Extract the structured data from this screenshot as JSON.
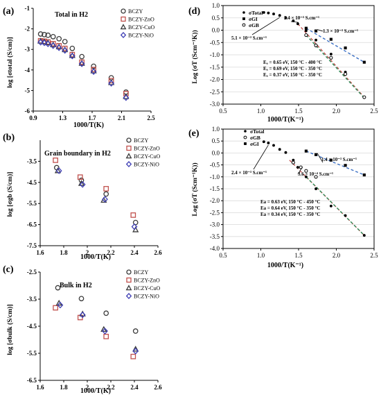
{
  "chart_data": [
    {
      "id": "a",
      "type": "scatter",
      "panel_label": "(a)",
      "title": "Total in H2",
      "xlabel": "1000/T(K)",
      "ylabel": "log [σtotal (S/cm)]",
      "xlim": [
        0.9,
        2.5
      ],
      "ylim": [
        -6,
        -1
      ],
      "xticks": [
        "0.9",
        "1.3",
        "1.7",
        "2.1",
        "2.5"
      ],
      "xtick_values": [
        0.9,
        1.3,
        1.7,
        2.1,
        2.5
      ],
      "yticks": [
        "-1",
        "-2",
        "-3",
        "-4",
        "-5",
        "-6"
      ],
      "ytick_values": [
        -1,
        -2,
        -3,
        -4,
        -5,
        -6
      ],
      "legend_position": "top-right",
      "series": [
        {
          "name": "BCZY",
          "marker": "circle",
          "color": "#3a3a3a",
          "x": [
            1.0,
            1.05,
            1.1,
            1.17,
            1.25,
            1.33,
            1.43,
            1.56,
            1.72,
            1.96,
            2.16
          ],
          "y": [
            -2.25,
            -2.28,
            -2.31,
            -2.38,
            -2.48,
            -2.62,
            -2.95,
            -3.35,
            -3.82,
            -4.38,
            -5.08
          ]
        },
        {
          "name": "BCZY-ZnO",
          "marker": "square",
          "color": "#c0504d",
          "x": [
            1.0,
            1.05,
            1.1,
            1.17,
            1.25,
            1.33,
            1.43,
            1.56,
            1.72,
            1.96,
            2.16
          ],
          "y": [
            -2.58,
            -2.6,
            -2.64,
            -2.72,
            -2.82,
            -2.95,
            -3.25,
            -3.62,
            -3.98,
            -4.52,
            -5.15
          ]
        },
        {
          "name": "BCZY-CuO",
          "marker": "triangle",
          "color": "#3a3a3a",
          "x": [
            1.0,
            1.05,
            1.1,
            1.17,
            1.25,
            1.33,
            1.43,
            1.56,
            1.72,
            1.96,
            2.16
          ],
          "y": [
            -2.6,
            -2.63,
            -2.68,
            -2.78,
            -2.88,
            -3.02,
            -3.3,
            -3.68,
            -4.05,
            -4.62,
            -5.3
          ]
        },
        {
          "name": "BCZY-NiO",
          "marker": "diamond",
          "color": "#3f3fb5",
          "x": [
            1.0,
            1.05,
            1.1,
            1.17,
            1.25,
            1.33,
            1.43,
            1.56,
            1.72,
            1.96,
            2.16
          ],
          "y": [
            -2.65,
            -2.68,
            -2.73,
            -2.82,
            -2.92,
            -3.05,
            -3.32,
            -3.7,
            -4.08,
            -4.65,
            -5.35
          ]
        }
      ]
    },
    {
      "id": "b",
      "type": "scatter",
      "panel_label": "(b)",
      "title": "Grain boundary in H2",
      "xlabel": "1000/T(K)",
      "ylabel": "log [σgb (S/cm)]",
      "xlim": [
        1.6,
        2.6
      ],
      "ylim": [
        -7.5,
        -2.5
      ],
      "xticks": [
        "1.6",
        "1.8",
        "2",
        "2.2",
        "2.4",
        "2.6"
      ],
      "xtick_values": [
        1.6,
        1.8,
        2.0,
        2.2,
        2.4,
        2.6
      ],
      "yticks": [
        "-3.5",
        "-4.5",
        "-5.5",
        "-6.5",
        "-7.5"
      ],
      "ytick_values": [
        -3.5,
        -4.5,
        -5.5,
        -6.5,
        -7.5
      ],
      "legend_position": "top-right",
      "series": [
        {
          "name": "BCZY",
          "marker": "circle",
          "color": "#3a3a3a",
          "x": [
            1.74,
            1.95,
            2.16,
            2.41
          ],
          "y": [
            -3.8,
            -4.4,
            -5.05,
            -6.4
          ]
        },
        {
          "name": "BCZY-ZnO",
          "marker": "square",
          "color": "#c0504d",
          "x": [
            1.73,
            1.94,
            2.16,
            2.39
          ],
          "y": [
            -3.45,
            -4.25,
            -4.8,
            -6.05
          ]
        },
        {
          "name": "BCZY-CuO",
          "marker": "triangle",
          "color": "#3a3a3a",
          "x": [
            1.75,
            1.95,
            2.14,
            2.41
          ],
          "y": [
            -3.95,
            -4.55,
            -5.35,
            -6.75
          ]
        },
        {
          "name": "BCZY-NiO",
          "marker": "diamond",
          "color": "#3f3fb5",
          "x": [
            1.76,
            1.96,
            2.15,
            2.4
          ],
          "y": [
            -3.95,
            -4.6,
            -5.3,
            -6.6
          ]
        }
      ]
    },
    {
      "id": "c",
      "type": "scatter",
      "panel_label": "(c)",
      "title": "Bulk in H2",
      "xlabel": "1000/T(K)",
      "ylabel": "log [σbulk (S/cm)]",
      "xlim": [
        1.6,
        2.6
      ],
      "ylim": [
        -6.5,
        -2.5
      ],
      "xticks": [
        "1.6",
        "1.8",
        "2",
        "2.2",
        "2.4",
        "2.6"
      ],
      "xtick_values": [
        1.6,
        1.8,
        2.0,
        2.2,
        2.4,
        2.6
      ],
      "yticks": [
        "-2.5",
        "-3.5",
        "-4.5",
        "-5.5",
        "-6.5"
      ],
      "ytick_values": [
        -2.5,
        -3.5,
        -4.5,
        -5.5,
        -6.5
      ],
      "legend_position": "top-right",
      "series": [
        {
          "name": "BCZY",
          "marker": "circle",
          "color": "#3a3a3a",
          "x": [
            1.75,
            1.95,
            2.16,
            2.41
          ],
          "y": [
            -3.08,
            -3.48,
            -4.02,
            -4.68
          ]
        },
        {
          "name": "BCZY-ZnO",
          "marker": "square",
          "color": "#c0504d",
          "x": [
            1.73,
            1.94,
            2.16,
            2.39
          ],
          "y": [
            -3.82,
            -4.18,
            -4.88,
            -5.62
          ]
        },
        {
          "name": "BCZY-CuO",
          "marker": "triangle",
          "color": "#3a3a3a",
          "x": [
            1.76,
            1.96,
            2.14,
            2.41
          ],
          "y": [
            -3.65,
            -4.05,
            -4.62,
            -5.35
          ]
        },
        {
          "name": "BCZY-NiO",
          "marker": "diamond",
          "color": "#3f3fb5",
          "x": [
            1.77,
            1.96,
            2.15,
            2.41
          ],
          "y": [
            -3.72,
            -4.08,
            -4.68,
            -5.42
          ]
        }
      ]
    },
    {
      "id": "d",
      "type": "scatter",
      "panel_label": "(d)",
      "title": "",
      "xlabel": "1000/T(K⁻¹)",
      "ylabel": "Log (σT (Scm⁻¹K))",
      "xlim": [
        0.5,
        2.5
      ],
      "ylim": [
        -3.0,
        1.0
      ],
      "xticks": [
        "0.5",
        "1.0",
        "1.5",
        "2.0",
        "2.5"
      ],
      "xtick_values": [
        0.5,
        1.0,
        1.5,
        2.0,
        2.5
      ],
      "yticks": [
        "1.0",
        "0.5",
        "0.0",
        "-0.5",
        "-1.0",
        "-1.5",
        "-2.0",
        "-2.5",
        "-3.0"
      ],
      "ytick_values": [
        1.0,
        0.5,
        0.0,
        -0.5,
        -1.0,
        -1.5,
        -2.0,
        -2.5,
        -3.0
      ],
      "grid": true,
      "legend_position": "top-left",
      "series": [
        {
          "name": "σTotal",
          "marker": "dot",
          "color": "#000000",
          "x": [
            1.04,
            1.1,
            1.17,
            1.25,
            1.33,
            1.43,
            1.49,
            1.6,
            1.73,
            1.93,
            2.12,
            2.37
          ],
          "y": [
            0.72,
            0.7,
            0.66,
            0.6,
            0.51,
            0.38,
            0.26,
            -0.02,
            -0.4,
            -0.97,
            -1.7,
            -2.72
          ]
        },
        {
          "name": "σGI",
          "marker": "square",
          "color": "#000000",
          "x": [
            1.6,
            1.73,
            1.93,
            2.12,
            2.37
          ],
          "y": [
            0.08,
            -0.03,
            -0.37,
            -0.72,
            -1.3
          ]
        },
        {
          "name": "σGB",
          "marker": "circle-open",
          "color": "#000000",
          "x": [
            1.6,
            1.73,
            1.93,
            2.12,
            2.37
          ],
          "y": [
            -0.2,
            -0.62,
            -1.12,
            -1.78,
            -2.72
          ]
        }
      ],
      "fits": [
        {
          "label": "Eₐ = 0.65 eV, 150 °C - 400 °C",
          "color": "#c0504d",
          "x": [
            1.49,
            2.37
          ],
          "y": [
            0.26,
            -2.72
          ]
        },
        {
          "label": "Eₐ = 0.69 eV, 150 °C - 350 °C",
          "color": "#2e8b57",
          "x": [
            1.6,
            2.37
          ],
          "y": [
            -0.2,
            -2.75
          ]
        },
        {
          "label": "Eₐ = 0.37 eV, 150 °C - 350 °C",
          "color": "#3a6fc4",
          "x": [
            1.6,
            2.37
          ],
          "y": [
            0.08,
            -1.3
          ]
        }
      ],
      "annotations": [
        "2.4 × 10⁻³ S.cm⁻¹",
        "1.3 × 10⁻³ S.cm⁻¹",
        "5.1 × 10⁻³ S.cm⁻¹"
      ]
    },
    {
      "id": "e",
      "type": "scatter",
      "panel_label": "(e)",
      "title": "",
      "xlabel": "1000/T(K⁻¹)",
      "ylabel": "Log (σT (Scm⁻¹K))",
      "xlim": [
        0.5,
        2.5
      ],
      "ylim": [
        -4.0,
        1.0
      ],
      "xticks": [
        "0.5",
        "1.0",
        "1.5",
        "2.0",
        "2.5"
      ],
      "xtick_values": [
        0.5,
        1.0,
        1.5,
        2.0,
        2.5
      ],
      "yticks": [
        "1.0",
        "0.5",
        "0.0",
        "-0.5",
        "-1.0",
        "-1.5",
        "-2.0",
        "-2.5",
        "-3.0",
        "-3.5",
        "-4.0"
      ],
      "ytick_values": [
        1.0,
        0.5,
        0.0,
        -0.5,
        -1.0,
        -1.5,
        -2.0,
        -2.5,
        -3.0,
        -3.5,
        -4.0
      ],
      "grid": true,
      "legend_position": "top-left",
      "series": [
        {
          "name": "σTotal",
          "marker": "dot",
          "color": "#000000",
          "x": [
            1.04,
            1.1,
            1.17,
            1.25,
            1.33,
            1.43,
            1.49,
            1.6,
            1.73,
            1.93,
            2.12,
            2.37
          ],
          "y": [
            0.47,
            0.42,
            0.32,
            0.15,
            0.02,
            -0.3,
            -0.6,
            -1.0,
            -1.5,
            -2.22,
            -2.62,
            -3.45
          ]
        },
        {
          "name": "σGB",
          "marker": "circle-open",
          "color": "#000000",
          "x": [
            1.43,
            1.53,
            1.6,
            1.73
          ],
          "y": [
            -0.4,
            -0.6,
            -0.75,
            -1.0
          ]
        },
        {
          "name": "σGI",
          "marker": "square",
          "color": "#000000",
          "x": [
            1.6,
            1.73,
            1.93,
            2.12,
            2.37
          ],
          "y": [
            0.08,
            -0.07,
            -0.3,
            -0.52,
            -0.92
          ]
        }
      ],
      "fits": [
        {
          "label": "Ea = 0.63 eV, 150 °C - 450 °C",
          "color": "#c0504d",
          "x": [
            1.38,
            2.37
          ],
          "y": [
            -0.3,
            -3.45
          ]
        },
        {
          "label": "Ea = 0.64 eV, 150 °C - 350 °C",
          "color": "#2e8b57",
          "x": [
            1.6,
            2.37
          ],
          "y": [
            -1.0,
            -3.45
          ]
        },
        {
          "label": "Ea = 0.34 eV, 150 °C - 350 °C",
          "color": "#3a6fc4",
          "x": [
            1.6,
            2.37
          ],
          "y": [
            0.08,
            -0.92
          ]
        }
      ],
      "annotations": [
        "1.4 × 10⁻³ S.cm⁻¹",
        "2.4 × 10⁻³ S.cm⁻¹",
        "3.6 × 10⁻⁴ S.cm⁻¹"
      ]
    }
  ]
}
